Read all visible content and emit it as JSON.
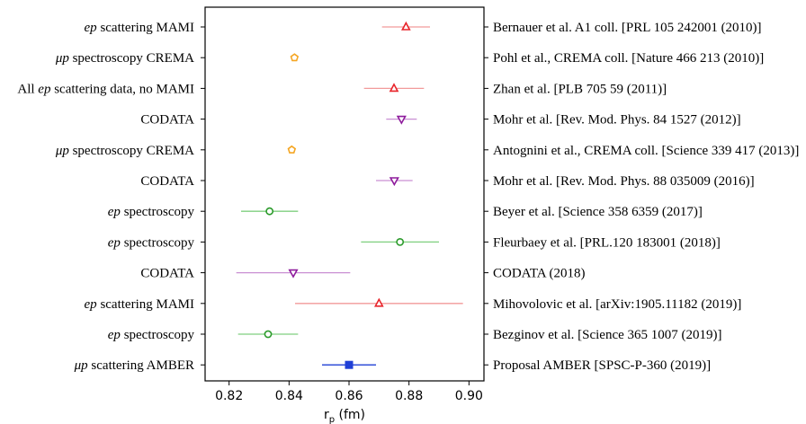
{
  "chart_data": {
    "type": "scatter",
    "title": "",
    "xlabel": "r",
    "xlabel_sub": "p",
    "xlabel_unit": " (fm)",
    "xlim": [
      0.812,
      0.905
    ],
    "xticks": [
      0.82,
      0.84,
      0.86,
      0.88,
      0.9
    ],
    "xtick_labels": [
      "0.82",
      "0.84",
      "0.86",
      "0.88",
      "0.90"
    ],
    "grid": false,
    "points": [
      {
        "label_italic": "ep",
        "label_rest": " scattering MAMI",
        "reference": "Bernauer et al. A1 coll. [PRL 105 242001 (2010)]",
        "value": 0.879,
        "err": 0.008,
        "marker": "triangle-up",
        "color": "#e8242a",
        "errcolor": "#f29a9a",
        "fill": "none"
      },
      {
        "label_italic": "μp",
        "label_rest": " spectroscopy CREMA",
        "reference": "Pohl et al., CREMA coll. [Nature 466 213 (2010)]",
        "value": 0.8418,
        "err": 0.0007,
        "marker": "pentagon",
        "color": "#f5a623",
        "errcolor": "#f5a623",
        "fill": "none"
      },
      {
        "label_italic": "",
        "label_rest": "All ep scattering data, no MAMI",
        "label_parts": [
          "All ",
          "ep",
          " scattering data, no MAMI"
        ],
        "reference": "Zhan et al. [PLB 705 59 (2011)]",
        "value": 0.875,
        "err": 0.01,
        "marker": "triangle-up",
        "color": "#e8242a",
        "errcolor": "#f29a9a",
        "fill": "none"
      },
      {
        "label_italic": "",
        "label_rest": "CODATA",
        "reference": "Mohr et al. [Rev. Mod. Phys. 84 1527 (2012)]",
        "value": 0.8775,
        "err": 0.0051,
        "marker": "triangle-down",
        "color": "#8e1b9c",
        "errcolor": "#c98fd3",
        "fill": "none"
      },
      {
        "label_italic": "μp",
        "label_rest": " spectroscopy CREMA",
        "reference": "Antognini et al., CREMA coll. [Science 339 417 (2013)]",
        "value": 0.8409,
        "err": 0.0004,
        "marker": "pentagon",
        "color": "#f5a623",
        "errcolor": "#f5a623",
        "fill": "none"
      },
      {
        "label_italic": "",
        "label_rest": "CODATA",
        "reference": "Mohr et al. [Rev. Mod. Phys. 88 035009 (2016)]",
        "value": 0.8751,
        "err": 0.0061,
        "marker": "triangle-down",
        "color": "#8e1b9c",
        "errcolor": "#c98fd3",
        "fill": "none"
      },
      {
        "label_italic": "ep",
        "label_rest": " spectroscopy",
        "reference": "Beyer et al. [Science 358 6359 (2017)]",
        "value": 0.8335,
        "err": 0.0095,
        "marker": "circle",
        "color": "#2a9a2a",
        "errcolor": "#7fcf7f",
        "fill": "none"
      },
      {
        "label_italic": "ep",
        "label_rest": " spectroscopy",
        "reference": "Fleurbaey et al. [PRL.120 183001 (2018)]",
        "value": 0.877,
        "err": 0.013,
        "marker": "circle",
        "color": "#2a9a2a",
        "errcolor": "#7fcf7f",
        "fill": "none"
      },
      {
        "label_italic": "",
        "label_rest": "CODATA",
        "reference": "CODATA (2018)",
        "value": 0.8414,
        "err": 0.019,
        "marker": "triangle-down",
        "color": "#8e1b9c",
        "errcolor": "#c98fd3",
        "fill": "none"
      },
      {
        "label_italic": "ep",
        "label_rest": " scattering MAMI",
        "reference": "Mihovolovic et al. [arXiv:1905.11182 (2019)]",
        "value": 0.87,
        "err": 0.028,
        "marker": "triangle-up",
        "color": "#e8242a",
        "errcolor": "#f29a9a",
        "fill": "none"
      },
      {
        "label_italic": "ep",
        "label_rest": " spectroscopy",
        "reference": "Bezginov et al. [Science 365 1007 (2019)]",
        "value": 0.833,
        "err": 0.01,
        "marker": "circle",
        "color": "#2a9a2a",
        "errcolor": "#7fcf7f",
        "fill": "none"
      },
      {
        "label_italic": "μp",
        "label_rest": " scattering AMBER",
        "reference": "Proposal AMBER [SPSC-P-360 (2019)]",
        "value": 0.86,
        "err": 0.009,
        "marker": "square",
        "color": "#1f3fd6",
        "errcolor": "#1f3fd6",
        "fill": "filled"
      }
    ]
  }
}
